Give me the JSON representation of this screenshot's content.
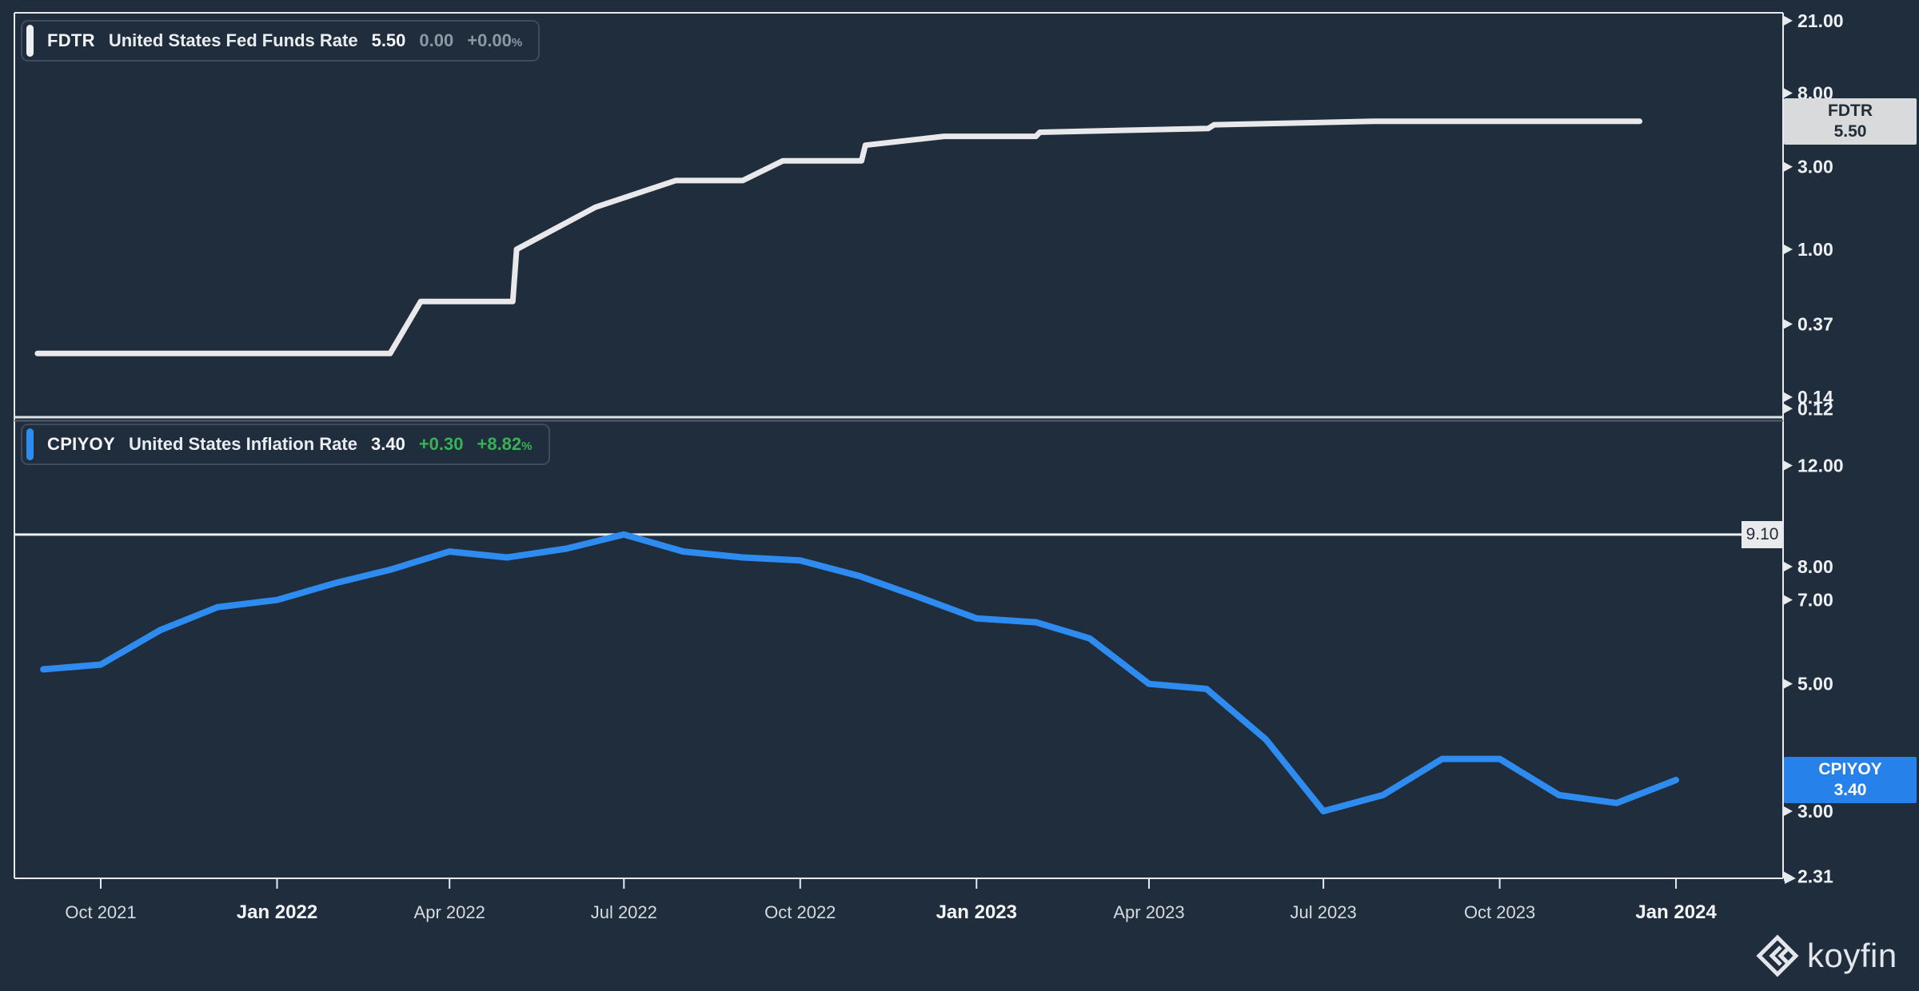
{
  "watermark": {
    "brand": "koyfin"
  },
  "colors": {
    "background": "#1f2d3d",
    "frame": "#e8ebee",
    "fdtr_line": "#e9e9eb",
    "cpi_line": "#2e8cf1",
    "fdtr_badge_bg": "#d8dadc",
    "cpi_badge_bg": "#2781ea",
    "positive_green": "#36b355",
    "muted_gray": "#8e98a4",
    "level_line": "#eef0f2"
  },
  "panels": {
    "fdtr": {
      "legend": {
        "ticker": "FDTR",
        "name": "United States Fed Funds Rate",
        "last": "5.50",
        "change": "0.00",
        "change_pct": "+0.00",
        "pct_symbol": "%"
      },
      "badge": {
        "ticker": "FDTR",
        "value": "5.50"
      }
    },
    "cpiyoy": {
      "legend": {
        "ticker": "CPIYOY",
        "name": "United States Inflation Rate",
        "last": "3.40",
        "change": "+0.30",
        "change_pct": "+8.82",
        "pct_symbol": "%"
      },
      "badge": {
        "ticker": "CPIYOY",
        "value": "3.40"
      },
      "high_label": "9.10"
    }
  },
  "chart_data": {
    "type": "line",
    "x_unit": "date",
    "x_ticks": [
      {
        "label": "Oct 2021",
        "date": "2021-10-01",
        "bold": false
      },
      {
        "label": "Jan 2022",
        "date": "2022-01-01",
        "bold": true
      },
      {
        "label": "Apr 2022",
        "date": "2022-04-01",
        "bold": false
      },
      {
        "label": "Jul 2022",
        "date": "2022-07-01",
        "bold": false
      },
      {
        "label": "Oct 2022",
        "date": "2022-10-01",
        "bold": false
      },
      {
        "label": "Jan 2023",
        "date": "2023-01-01",
        "bold": true
      },
      {
        "label": "Apr 2023",
        "date": "2023-04-01",
        "bold": false
      },
      {
        "label": "Jul 2023",
        "date": "2023-07-01",
        "bold": false
      },
      {
        "label": "Oct 2023",
        "date": "2023-10-01",
        "bold": false
      },
      {
        "label": "Jan 2024",
        "date": "2024-01-01",
        "bold": true
      }
    ],
    "panels": [
      {
        "ticker": "FDTR",
        "name": "United States Fed Funds Rate",
        "scale": "log",
        "last_value": 5.5,
        "y_ticks": [
          {
            "label": "21.00",
            "value": 21
          },
          {
            "label": "8.00",
            "value": 8
          },
          {
            "label": "3.00",
            "value": 3
          },
          {
            "label": "1.00",
            "value": 1
          },
          {
            "label": "0.37",
            "value": 0.37
          },
          {
            "label": "0.14",
            "value": 0.14
          },
          {
            "label": "0.12",
            "value": 0.12
          }
        ],
        "points": [
          [
            "2021-08-29",
            0.25
          ],
          [
            "2022-03-01",
            0.25
          ],
          [
            "2022-03-17",
            0.5
          ],
          [
            "2022-05-04",
            0.5
          ],
          [
            "2022-05-06",
            1.0
          ],
          [
            "2022-06-16",
            1.75
          ],
          [
            "2022-07-28",
            2.5
          ],
          [
            "2022-09-01",
            2.5
          ],
          [
            "2022-09-22",
            3.25
          ],
          [
            "2022-11-02",
            3.25
          ],
          [
            "2022-11-04",
            4.0
          ],
          [
            "2022-12-15",
            4.5
          ],
          [
            "2023-02-01",
            4.5
          ],
          [
            "2023-02-03",
            4.75
          ],
          [
            "2023-05-02",
            5.0
          ],
          [
            "2023-05-05",
            5.25
          ],
          [
            "2023-07-27",
            5.5
          ],
          [
            "2023-12-13",
            5.5
          ]
        ]
      },
      {
        "ticker": "CPIYOY",
        "name": "United States Inflation Rate",
        "scale": "log",
        "last_value": 3.4,
        "high_line": {
          "label": "9.10",
          "value": 9.1
        },
        "y_ticks": [
          {
            "label": "12.00",
            "value": 12
          },
          {
            "label": "8.00",
            "value": 8
          },
          {
            "label": "7.00",
            "value": 7
          },
          {
            "label": "5.00",
            "value": 5
          },
          {
            "label": "3.00",
            "value": 3
          },
          {
            "label": "2.31",
            "value": 2.31
          }
        ],
        "points": [
          [
            "2021-08",
            5.3
          ],
          [
            "2021-09",
            5.4
          ],
          [
            "2021-10",
            6.2
          ],
          [
            "2021-11",
            6.8
          ],
          [
            "2021-12",
            7.0
          ],
          [
            "2022-01",
            7.5
          ],
          [
            "2022-02",
            7.9
          ],
          [
            "2022-03",
            8.5
          ],
          [
            "2022-04",
            8.3
          ],
          [
            "2022-05",
            8.6
          ],
          [
            "2022-06",
            9.1
          ],
          [
            "2022-07",
            8.5
          ],
          [
            "2022-08",
            8.3
          ],
          [
            "2022-09",
            8.2
          ],
          [
            "2022-10",
            7.7
          ],
          [
            "2022-11",
            7.1
          ],
          [
            "2022-12",
            6.5
          ],
          [
            "2023-01",
            6.4
          ],
          [
            "2023-02",
            6.0
          ],
          [
            "2023-03",
            5.0
          ],
          [
            "2023-04",
            4.9
          ],
          [
            "2023-05",
            4.0
          ],
          [
            "2023-06",
            3.0
          ],
          [
            "2023-07",
            3.2
          ],
          [
            "2023-08",
            3.7
          ],
          [
            "2023-09",
            3.7
          ],
          [
            "2023-10",
            3.2
          ],
          [
            "2023-11",
            3.1
          ],
          [
            "2023-12",
            3.4
          ]
        ]
      }
    ]
  }
}
